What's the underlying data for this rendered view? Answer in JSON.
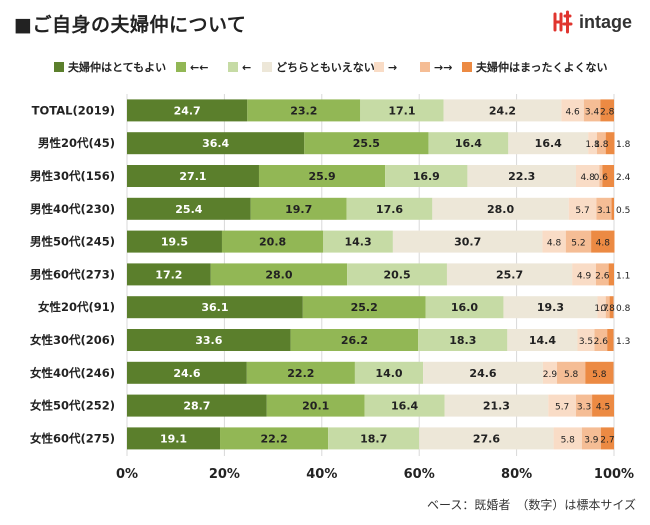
{
  "page": {
    "title": "■ご自身の夫婦仲について",
    "logo_text": "intage",
    "footnote": "ベース：既婚者　（数字）は標本サイズ"
  },
  "chart_data": {
    "type": "bar",
    "orientation": "horizontal",
    "stacked": true,
    "legend_position": "top",
    "xlim": [
      0,
      100
    ],
    "x_ticks": [
      "0%",
      "20%",
      "40%",
      "60%",
      "80%",
      "100%"
    ],
    "categories": [
      "TOTAL(2019)",
      "男性20代(45)",
      "男性30代(156)",
      "男性40代(230)",
      "男性50代(245)",
      "男性60代(273)",
      "女性20代(91)",
      "女性30代(206)",
      "女性40代(246)",
      "女性50代(252)",
      "女性60代(275)"
    ],
    "series": [
      {
        "name": "夫婦仲はとてもよい",
        "color": "#5b7f2c",
        "values": [
          24.7,
          36.4,
          27.1,
          25.4,
          19.5,
          17.2,
          36.1,
          33.6,
          24.6,
          28.7,
          19.1
        ]
      },
      {
        "name": "←←",
        "color": "#92b755",
        "values": [
          23.2,
          25.5,
          25.9,
          19.7,
          20.8,
          28.0,
          25.2,
          26.2,
          22.2,
          20.1,
          22.2
        ]
      },
      {
        "name": "←",
        "color": "#c6dba5",
        "values": [
          17.1,
          16.4,
          16.9,
          17.6,
          14.3,
          20.5,
          16.0,
          18.3,
          14.0,
          16.4,
          18.7
        ]
      },
      {
        "name": "どちらともいえない",
        "color": "#ede7d8",
        "values": [
          24.2,
          16.4,
          22.3,
          28.0,
          30.7,
          25.7,
          19.3,
          14.4,
          24.6,
          21.3,
          27.6
        ]
      },
      {
        "name": "→",
        "color": "#f9dcc6",
        "values": [
          4.6,
          1.8,
          4.8,
          5.7,
          4.8,
          4.9,
          1.7,
          3.5,
          2.9,
          5.7,
          5.8
        ]
      },
      {
        "name": "→→",
        "color": "#f5bd95",
        "values": [
          3.4,
          1.8,
          0.6,
          3.1,
          5.2,
          2.6,
          0.8,
          2.6,
          5.8,
          3.3,
          3.9
        ]
      },
      {
        "name": "夫婦仲はまったくよくない",
        "color": "#ec8a43",
        "values": [
          2.8,
          1.8,
          2.4,
          0.5,
          4.8,
          1.1,
          0.8,
          1.3,
          5.8,
          4.5,
          2.7
        ]
      }
    ]
  }
}
